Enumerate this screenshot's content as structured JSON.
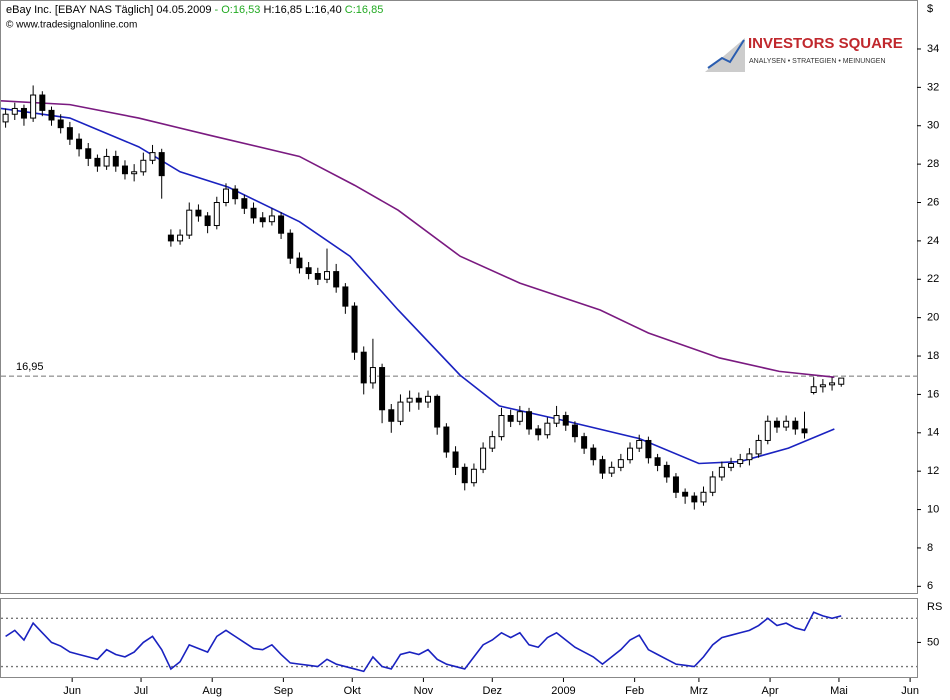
{
  "header": {
    "parts": [
      {
        "text": "eBay Inc. [EBAY NAS  Täglich] 04.05.2009 ",
        "color": "#000000"
      },
      {
        "text": "- O:16,53",
        "color": "#22aa22"
      },
      {
        "text": " H:16,85 L:16,40 ",
        "color": "#000000"
      },
      {
        "text": "C:16,85",
        "color": "#22aa22"
      }
    ],
    "copyright": "© www.tradesignalonline.com"
  },
  "logo": {
    "name": "INVESTORS SQUARE",
    "tagline": "ANALYSEN • STRATEGIEN • MEINUNGEN"
  },
  "chart_data": [
    {
      "type": "candlestick",
      "y_label": "$",
      "xlim": [
        0,
        399
      ],
      "ylim": [
        5.6,
        36.5
      ],
      "yticks": [
        6,
        8,
        10,
        12,
        14,
        16,
        18,
        20,
        22,
        24,
        26,
        28,
        30,
        32,
        34
      ],
      "color": "#000000",
      "up_color": "#ffffff",
      "hline": {
        "value": 16.95,
        "label": "16,95",
        "color": "#999999"
      },
      "x": [
        2,
        6,
        10,
        14,
        18,
        22,
        26,
        30,
        34,
        38,
        42,
        46,
        50,
        54,
        58,
        62,
        66,
        70,
        74,
        78,
        82,
        86,
        90,
        94,
        98,
        102,
        106,
        110,
        114,
        118,
        122,
        126,
        130,
        134,
        138,
        142,
        146,
        150,
        154,
        158,
        162,
        166,
        170,
        174,
        178,
        182,
        186,
        190,
        194,
        198,
        202,
        206,
        210,
        214,
        218,
        222,
        226,
        230,
        234,
        238,
        242,
        246,
        250,
        254,
        258,
        262,
        266,
        270,
        274,
        278,
        282,
        286,
        290,
        294,
        298,
        302,
        306,
        310,
        314,
        318,
        322,
        326,
        330,
        334,
        338,
        342,
        346,
        350,
        354,
        358,
        362,
        366
      ],
      "ohlc": [
        [
          30.2,
          30.9,
          29.9,
          30.6
        ],
        [
          30.6,
          31.2,
          30.3,
          30.9
        ],
        [
          30.9,
          31.1,
          30.0,
          30.4
        ],
        [
          30.4,
          32.1,
          30.2,
          31.6
        ],
        [
          31.6,
          31.8,
          30.5,
          30.8
        ],
        [
          30.8,
          31.0,
          30.0,
          30.3
        ],
        [
          30.3,
          30.6,
          29.6,
          29.9
        ],
        [
          29.9,
          30.2,
          29.0,
          29.3
        ],
        [
          29.3,
          29.6,
          28.4,
          28.8
        ],
        [
          28.8,
          29.1,
          27.9,
          28.3
        ],
        [
          28.3,
          28.5,
          27.6,
          27.9
        ],
        [
          27.9,
          28.8,
          27.7,
          28.4
        ],
        [
          28.4,
          28.7,
          27.6,
          27.9
        ],
        [
          27.9,
          28.2,
          27.2,
          27.5
        ],
        [
          27.5,
          28.0,
          27.1,
          27.6
        ],
        [
          27.6,
          28.6,
          27.4,
          28.2
        ],
        [
          28.2,
          29.0,
          28.0,
          28.6
        ],
        [
          28.6,
          28.8,
          26.2,
          27.4
        ],
        [
          24.3,
          24.6,
          23.7,
          24.0
        ],
        [
          24.0,
          24.6,
          23.8,
          24.3
        ],
        [
          24.3,
          26.0,
          24.1,
          25.6
        ],
        [
          25.6,
          25.9,
          25.0,
          25.3
        ],
        [
          25.3,
          25.5,
          24.4,
          24.8
        ],
        [
          24.8,
          26.3,
          24.6,
          26.0
        ],
        [
          26.0,
          27.0,
          25.8,
          26.7
        ],
        [
          26.7,
          26.9,
          25.9,
          26.2
        ],
        [
          26.2,
          26.4,
          25.4,
          25.7
        ],
        [
          25.7,
          26.0,
          24.9,
          25.2
        ],
        [
          25.2,
          25.5,
          24.7,
          25.0
        ],
        [
          25.0,
          25.7,
          24.8,
          25.3
        ],
        [
          25.3,
          25.5,
          24.1,
          24.4
        ],
        [
          24.4,
          24.6,
          22.8,
          23.1
        ],
        [
          23.1,
          23.4,
          22.3,
          22.6
        ],
        [
          22.6,
          22.9,
          22.0,
          22.3
        ],
        [
          22.3,
          22.6,
          21.7,
          22.0
        ],
        [
          22.0,
          23.6,
          21.8,
          22.4
        ],
        [
          22.4,
          22.8,
          21.3,
          21.6
        ],
        [
          21.6,
          21.8,
          20.2,
          20.6
        ],
        [
          20.6,
          20.8,
          17.8,
          18.2
        ],
        [
          18.2,
          18.5,
          16.0,
          16.6
        ],
        [
          16.6,
          18.9,
          16.3,
          17.4
        ],
        [
          17.4,
          17.6,
          14.5,
          15.2
        ],
        [
          15.2,
          15.5,
          14.0,
          14.6
        ],
        [
          14.6,
          16.0,
          14.4,
          15.6
        ],
        [
          15.6,
          16.2,
          15.1,
          15.8
        ],
        [
          15.8,
          16.1,
          15.2,
          15.6
        ],
        [
          15.6,
          16.2,
          15.3,
          15.9
        ],
        [
          15.9,
          16.0,
          13.9,
          14.3
        ],
        [
          14.3,
          14.5,
          12.7,
          13.0
        ],
        [
          13.0,
          13.3,
          11.8,
          12.2
        ],
        [
          12.2,
          12.4,
          11.0,
          11.4
        ],
        [
          11.4,
          12.4,
          11.2,
          12.1
        ],
        [
          12.1,
          13.5,
          11.9,
          13.2
        ],
        [
          13.2,
          14.1,
          13.0,
          13.8
        ],
        [
          13.8,
          15.3,
          13.6,
          14.9
        ],
        [
          14.9,
          15.2,
          14.3,
          14.6
        ],
        [
          14.6,
          15.4,
          14.4,
          15.1
        ],
        [
          15.1,
          15.3,
          13.9,
          14.2
        ],
        [
          14.2,
          14.4,
          13.6,
          13.9
        ],
        [
          13.9,
          14.8,
          13.7,
          14.5
        ],
        [
          14.5,
          15.4,
          14.3,
          14.9
        ],
        [
          14.9,
          15.1,
          14.1,
          14.4
        ],
        [
          14.4,
          14.6,
          13.5,
          13.8
        ],
        [
          13.8,
          14.0,
          12.9,
          13.2
        ],
        [
          13.2,
          13.4,
          12.3,
          12.6
        ],
        [
          12.6,
          12.8,
          11.6,
          11.9
        ],
        [
          11.9,
          12.5,
          11.7,
          12.2
        ],
        [
          12.2,
          12.9,
          12.0,
          12.6
        ],
        [
          12.6,
          13.5,
          12.4,
          13.2
        ],
        [
          13.2,
          13.9,
          13.0,
          13.6
        ],
        [
          13.6,
          13.8,
          12.4,
          12.7
        ],
        [
          12.7,
          12.9,
          12.0,
          12.3
        ],
        [
          12.3,
          12.5,
          11.4,
          11.7
        ],
        [
          11.7,
          11.9,
          10.6,
          10.9
        ],
        [
          10.9,
          11.1,
          10.3,
          10.7
        ],
        [
          10.7,
          10.9,
          10.0,
          10.4
        ],
        [
          10.4,
          11.2,
          10.2,
          10.9
        ],
        [
          10.9,
          12.0,
          10.7,
          11.7
        ],
        [
          11.7,
          12.5,
          11.5,
          12.2
        ],
        [
          12.2,
          12.7,
          12.0,
          12.4
        ],
        [
          12.4,
          12.9,
          12.2,
          12.6
        ],
        [
          12.6,
          13.2,
          12.3,
          12.9
        ],
        [
          12.9,
          13.9,
          12.7,
          13.6
        ],
        [
          13.6,
          14.9,
          13.4,
          14.6
        ],
        [
          14.6,
          14.8,
          14.0,
          14.3
        ],
        [
          14.3,
          14.9,
          14.1,
          14.6
        ],
        [
          14.6,
          14.8,
          13.9,
          14.2
        ],
        [
          14.2,
          15.1,
          13.7,
          14.0
        ],
        [
          16.1,
          16.9,
          16.0,
          16.4
        ],
        [
          16.4,
          16.8,
          16.1,
          16.5
        ],
        [
          16.5,
          16.9,
          16.2,
          16.6
        ],
        [
          16.53,
          16.85,
          16.4,
          16.85
        ]
      ],
      "lines": [
        {
          "color": "#7a1a80",
          "x": [
            0,
            30,
            60,
            91,
            130,
            154,
            173,
            200,
            226,
            261,
            282,
            313,
            339,
            363
          ],
          "values": [
            31.3,
            31.1,
            30.4,
            29.5,
            28.4,
            26.9,
            25.6,
            23.2,
            21.8,
            20.4,
            19.2,
            17.9,
            17.2,
            16.9
          ]
        },
        {
          "color": "#1a22c0",
          "x": [
            0,
            30,
            60,
            78,
            99,
            130,
            152,
            173,
            200,
            217,
            243,
            278,
            304,
            322,
            343,
            363
          ],
          "values": [
            30.9,
            30.4,
            28.9,
            27.6,
            26.8,
            25.0,
            23.2,
            20.4,
            17.0,
            15.4,
            14.7,
            13.7,
            12.4,
            12.5,
            13.2,
            14.2
          ]
        }
      ]
    },
    {
      "type": "line",
      "y_label": "RS",
      "xlim": [
        0,
        399
      ],
      "ylim": [
        20.5,
        86
      ],
      "yticks": [
        50
      ],
      "color": "#1a22c0",
      "hlines": [
        70,
        30
      ],
      "xticks": [
        {
          "value": 31,
          "label": "Jun"
        },
        {
          "value": 61,
          "label": "Jul"
        },
        {
          "value": 92,
          "label": "Aug"
        },
        {
          "value": 123,
          "label": "Sep"
        },
        {
          "value": 153,
          "label": "Okt"
        },
        {
          "value": 184,
          "label": "Nov"
        },
        {
          "value": 214,
          "label": "Dez"
        },
        {
          "value": 245,
          "label": "2009"
        },
        {
          "value": 276,
          "label": "Feb"
        },
        {
          "value": 304,
          "label": "Mrz"
        },
        {
          "value": 335,
          "label": "Apr"
        },
        {
          "value": 365,
          "label": "Mai"
        },
        {
          "value": 396,
          "label": "Jun"
        }
      ],
      "x": [
        2,
        6,
        10,
        14,
        18,
        22,
        26,
        30,
        34,
        38,
        42,
        46,
        50,
        54,
        58,
        62,
        66,
        70,
        74,
        78,
        82,
        86,
        90,
        94,
        98,
        102,
        106,
        110,
        114,
        118,
        122,
        126,
        130,
        134,
        138,
        142,
        146,
        150,
        154,
        158,
        162,
        166,
        170,
        174,
        178,
        182,
        186,
        190,
        194,
        198,
        202,
        206,
        210,
        214,
        218,
        222,
        226,
        230,
        234,
        238,
        242,
        246,
        250,
        254,
        258,
        262,
        266,
        270,
        274,
        278,
        282,
        286,
        290,
        294,
        298,
        302,
        306,
        310,
        314,
        318,
        322,
        326,
        330,
        334,
        338,
        342,
        346,
        350,
        354,
        358,
        362,
        366
      ],
      "values": [
        55,
        60,
        52,
        66,
        58,
        50,
        47,
        42,
        40,
        38,
        36,
        44,
        40,
        38,
        42,
        50,
        55,
        44,
        28,
        34,
        48,
        45,
        42,
        55,
        60,
        55,
        50,
        45,
        44,
        48,
        40,
        33,
        32,
        31,
        30,
        36,
        32,
        30,
        28,
        26,
        38,
        30,
        28,
        40,
        42,
        40,
        44,
        36,
        32,
        30,
        28,
        38,
        48,
        52,
        58,
        54,
        58,
        48,
        46,
        54,
        58,
        52,
        46,
        42,
        38,
        32,
        38,
        44,
        52,
        56,
        44,
        40,
        36,
        32,
        31,
        30,
        38,
        48,
        54,
        56,
        58,
        60,
        64,
        70,
        64,
        66,
        62,
        60,
        75,
        72,
        70,
        72
      ]
    }
  ]
}
